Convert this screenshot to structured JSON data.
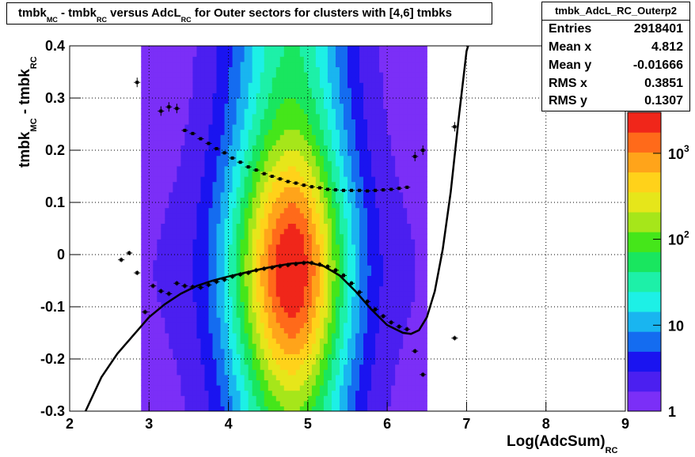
{
  "title": {
    "main": "tmbk",
    "sub_mc": "MC",
    "minus": " - tmbk",
    "sub_rc": "RC",
    "versus": " versus AdcL",
    "sub_rc2": "RC",
    "rest": " for Outer sectors for clusters with [4,6] tmbks"
  },
  "stats": {
    "name": "tmbk_AdcL_RC_Outerp2",
    "rows": [
      {
        "label": "Entries",
        "value": "2918401"
      },
      {
        "label": "Mean x",
        "value": "4.812"
      },
      {
        "label": "Mean y",
        "value": "-0.01666"
      },
      {
        "label": "RMS x",
        "value": "0.3851"
      },
      {
        "label": "RMS y",
        "value": "0.1307"
      }
    ]
  },
  "axis_labels": {
    "x_main": "Log(AdcSum)",
    "x_sub": "RC",
    "y_main": "tmbk",
    "y_sub1": "MC",
    "y_mid": " - tmbk",
    "y_sub2": "RC"
  },
  "colors": {
    "frame": "#000000",
    "grid": "#000000",
    "curve": "#000000",
    "palette": [
      "#7b2ff7",
      "#4b1ff0",
      "#1a14f0",
      "#146cf0",
      "#19b5f0",
      "#1df0e6",
      "#1df0a8",
      "#19e65f",
      "#45e61a",
      "#a6e61a",
      "#e6e61a",
      "#ffd21a",
      "#ffa41a",
      "#ff6a1a",
      "#f0261a"
    ]
  },
  "chart_data": {
    "type": "heatmap",
    "xlim": [
      2,
      9
    ],
    "ylim": [
      -0.3,
      0.4
    ],
    "x_ticks": [
      2,
      3,
      4,
      5,
      6,
      7,
      8,
      9
    ],
    "y_ticks": [
      -0.3,
      -0.2,
      -0.1,
      0,
      0.1,
      0.2,
      0.3,
      0.4
    ],
    "y_tick_labels": [
      "-0.3",
      "-0.2",
      "-0.1",
      "0",
      "0.1",
      "0.2",
      "0.3",
      "0.4"
    ],
    "grid": true,
    "z_scale": "log",
    "z_ticks": [
      {
        "value": 1,
        "label": "1"
      },
      {
        "value": 10,
        "label": "10"
      },
      {
        "value": 100,
        "label": "10",
        "exp": "2"
      },
      {
        "value": 1000,
        "label": "10",
        "exp": "3"
      }
    ],
    "z_range": [
      1,
      3000
    ],
    "peak": {
      "x": 4.8,
      "y": -0.03
    },
    "x_extent": [
      2.85,
      6.55
    ],
    "profile_upper": {
      "x": [
        3.45,
        3.55,
        3.65,
        3.75,
        3.85,
        3.95,
        4.05,
        4.15,
        4.25,
        4.35,
        4.45,
        4.55,
        4.65,
        4.75,
        4.85,
        4.95,
        5.05,
        5.15,
        5.25,
        5.35,
        5.45,
        5.55,
        5.65,
        5.75,
        5.85,
        5.95,
        6.05,
        6.15,
        6.25
      ],
      "y": [
        0.238,
        0.232,
        0.222,
        0.213,
        0.203,
        0.195,
        0.185,
        0.177,
        0.168,
        0.162,
        0.155,
        0.15,
        0.145,
        0.14,
        0.137,
        0.133,
        0.13,
        0.128,
        0.125,
        0.124,
        0.123,
        0.123,
        0.123,
        0.122,
        0.123,
        0.124,
        0.125,
        0.127,
        0.129
      ]
    },
    "profile_lower": {
      "x": [
        2.65,
        2.75,
        2.85,
        2.95,
        3.05,
        3.15,
        3.25,
        3.35,
        3.45,
        3.55,
        3.65,
        3.75,
        3.85,
        3.95,
        4.05,
        4.15,
        4.25,
        4.35,
        4.45,
        4.55,
        4.65,
        4.75,
        4.85,
        4.95,
        5.05,
        5.15,
        5.25,
        5.35,
        5.45,
        5.55,
        5.65,
        5.75,
        5.85,
        5.95,
        6.05,
        6.15,
        6.25,
        6.35,
        6.45,
        6.85
      ],
      "y": [
        -0.01,
        0.003,
        -0.035,
        -0.11,
        -0.06,
        -0.07,
        -0.075,
        -0.055,
        -0.06,
        -0.062,
        -0.063,
        -0.058,
        -0.052,
        -0.048,
        -0.042,
        -0.038,
        -0.035,
        -0.03,
        -0.027,
        -0.025,
        -0.022,
        -0.02,
        -0.018,
        -0.016,
        -0.016,
        -0.019,
        -0.023,
        -0.03,
        -0.04,
        -0.055,
        -0.072,
        -0.09,
        -0.105,
        -0.118,
        -0.13,
        -0.138,
        -0.143,
        -0.185,
        -0.23,
        -0.16
      ]
    },
    "profile_extra": {
      "x": [
        2.85,
        3.15,
        3.25,
        3.35,
        6.35,
        6.45,
        6.85
      ],
      "y": [
        0.33,
        0.275,
        0.283,
        0.28,
        0.188,
        0.2,
        0.245
      ]
    },
    "fit_curve": {
      "x": [
        2.2,
        2.4,
        2.6,
        2.8,
        3.0,
        3.2,
        3.4,
        3.6,
        3.8,
        4.0,
        4.2,
        4.4,
        4.6,
        4.8,
        5.0,
        5.2,
        5.4,
        5.6,
        5.8,
        6.0,
        6.2,
        6.3,
        6.4,
        6.5,
        6.6,
        6.7,
        6.8,
        6.9,
        7.0,
        7.02
      ],
      "y": [
        -0.3,
        -0.235,
        -0.19,
        -0.155,
        -0.12,
        -0.095,
        -0.075,
        -0.06,
        -0.05,
        -0.042,
        -0.035,
        -0.028,
        -0.022,
        -0.017,
        -0.015,
        -0.022,
        -0.04,
        -0.07,
        -0.105,
        -0.135,
        -0.15,
        -0.152,
        -0.145,
        -0.12,
        -0.07,
        0.01,
        0.12,
        0.26,
        0.39,
        0.4
      ]
    }
  }
}
